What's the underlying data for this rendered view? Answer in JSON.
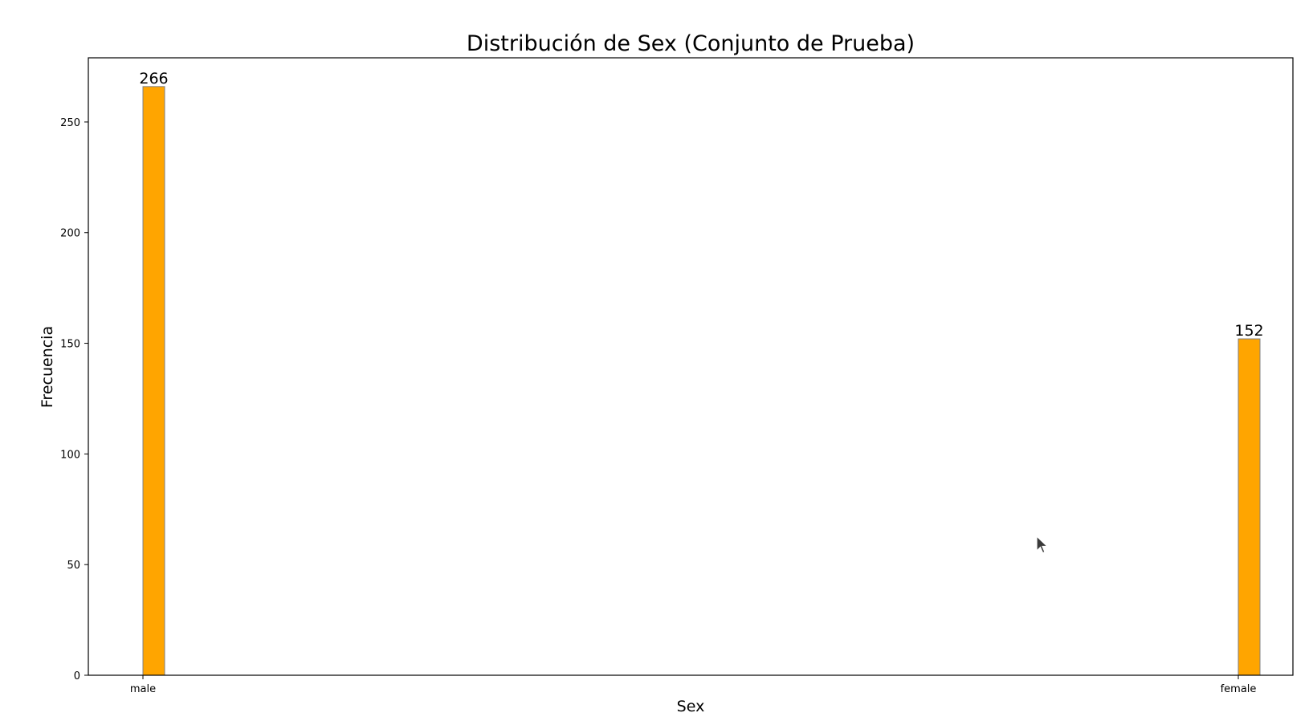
{
  "chart_data": {
    "type": "bar",
    "title": "Distribución de Sex (Conjunto de Prueba)",
    "xlabel": "Sex",
    "ylabel": "Frecuencia",
    "categories": [
      "male",
      "female"
    ],
    "values": [
      266,
      152
    ],
    "data_labels": [
      "266",
      "152"
    ],
    "ylim": [
      0,
      279
    ],
    "yticks": [
      0,
      50,
      100,
      150,
      200,
      250
    ],
    "grid": false,
    "legend": "none",
    "bar_color": "#FFA500",
    "bar_edge_color": "#808080"
  },
  "cursor": {
    "icon": "mouse-pointer-icon"
  }
}
